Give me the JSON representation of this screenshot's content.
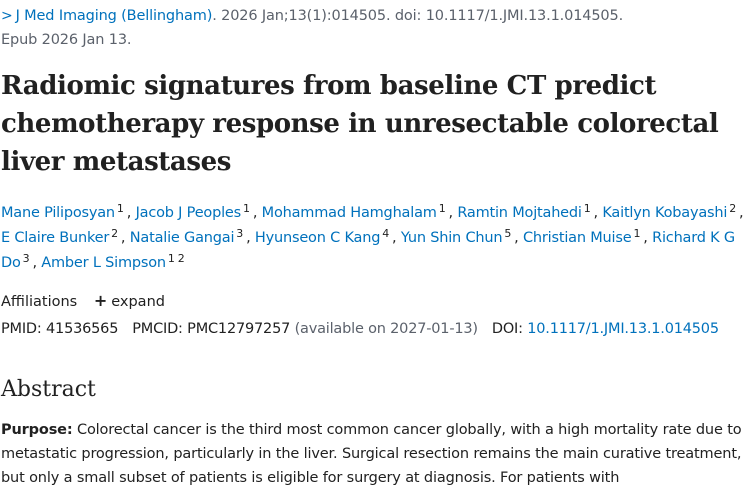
{
  "citation": {
    "chevron": ">",
    "journal": "J Med Imaging (Bellingham)",
    "details": ". 2026 Jan;13(1):014505. doi: 10.1117/1.JMI.13.1.014505.",
    "epub": "Epub 2026 Jan 13."
  },
  "title": "Radiomic signatures from baseline CT predict chemotherapy response in unresectable colorectal liver metastases",
  "authors": [
    {
      "name": "Mane Piliposyan",
      "affils": [
        "1"
      ]
    },
    {
      "name": "Jacob J Peoples",
      "affils": [
        "1"
      ]
    },
    {
      "name": "Mohammad Hamghalam",
      "affils": [
        "1"
      ]
    },
    {
      "name": "Ramtin Mojtahedi",
      "affils": [
        "1"
      ]
    },
    {
      "name": "Kaitlyn Kobayashi",
      "affils": [
        "2"
      ]
    },
    {
      "name": "E Claire Bunker",
      "affils": [
        "2"
      ]
    },
    {
      "name": "Natalie Gangai",
      "affils": [
        "3"
      ]
    },
    {
      "name": "Hyunseon C Kang",
      "affils": [
        "4"
      ]
    },
    {
      "name": "Yun Shin Chun",
      "affils": [
        "5"
      ]
    },
    {
      "name": "Christian Muise",
      "affils": [
        "1"
      ]
    },
    {
      "name": "Richard K G Do",
      "affils": [
        "3"
      ]
    },
    {
      "name": "Amber L Simpson",
      "affils": [
        "1",
        "2"
      ]
    }
  ],
  "affiliations": {
    "label": "Affiliations",
    "expand_icon": "+",
    "expand_label": "expand"
  },
  "ids": {
    "pmid_label": "PMID:",
    "pmid": "41536565",
    "pmcid_label": "PMCID:",
    "pmcid": "PMC12797257",
    "available": "(available on 2027-01-13)",
    "doi_label": "DOI:",
    "doi": "10.1117/1.JMI.13.1.014505"
  },
  "abstract": {
    "heading": "Abstract",
    "purpose_label": "Purpose:",
    "purpose_text": " Colorectal cancer is the third most common cancer globally, with a high mortality rate due to metastatic progression, particularly in the liver. Surgical resection remains the main curative treatment, but only a small subset of patients is eligible for surgery at diagnosis. For patients with"
  }
}
